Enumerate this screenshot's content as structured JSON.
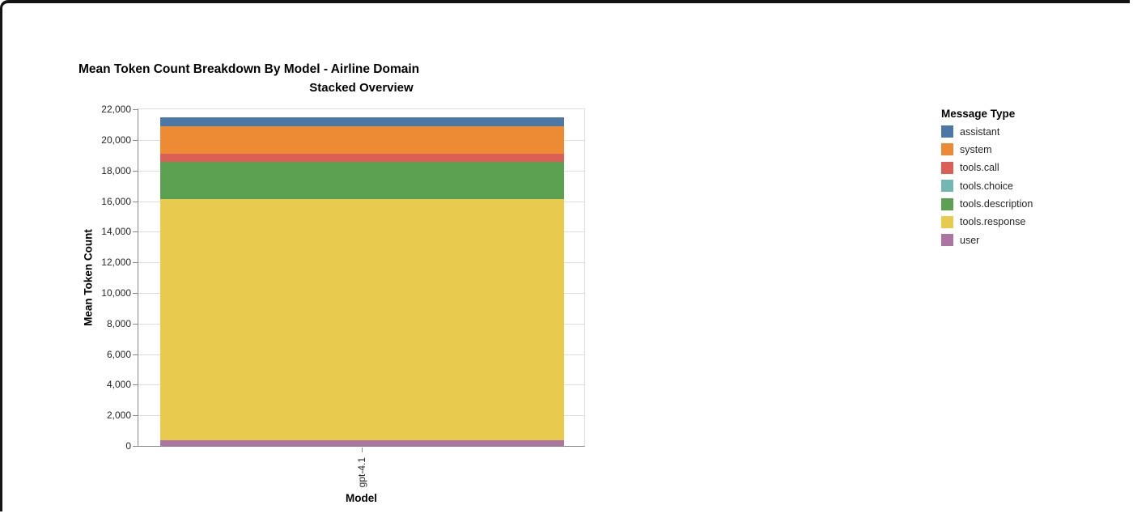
{
  "chart_data": {
    "type": "bar",
    "stacked": true,
    "title": "Mean Token Count Breakdown By Model - Airline Domain",
    "subtitle": "Stacked Overview",
    "xlabel": "Model",
    "ylabel": "Mean Token Count",
    "categories": [
      "gpt-4.1"
    ],
    "ylim": [
      0,
      22000
    ],
    "ytick_step": 2000,
    "ytick_labels": [
      "0",
      "2,000",
      "4,000",
      "6,000",
      "8,000",
      "10,000",
      "12,000",
      "14,000",
      "16,000",
      "18,000",
      "20,000",
      "22,000"
    ],
    "grid": true,
    "legend_title": "Message Type",
    "legend_position": "right",
    "series": [
      {
        "name": "assistant",
        "color": "#4c78a8",
        "values": [
          600
        ]
      },
      {
        "name": "system",
        "color": "#ec8b33",
        "values": [
          1800
        ]
      },
      {
        "name": "tools.call",
        "color": "#d95f57",
        "values": [
          520
        ]
      },
      {
        "name": "tools.choice",
        "color": "#72b7b2",
        "values": [
          0
        ]
      },
      {
        "name": "tools.description",
        "color": "#5ca152",
        "values": [
          2420
        ]
      },
      {
        "name": "tools.response",
        "color": "#e8ca4f",
        "values": [
          15800
        ]
      },
      {
        "name": "user",
        "color": "#ab74a1",
        "values": [
          350
        ]
      }
    ],
    "stack_order_bottom_to_top": [
      "user",
      "tools.response",
      "tools.description",
      "tools.choice",
      "tools.call",
      "system",
      "assistant"
    ]
  }
}
